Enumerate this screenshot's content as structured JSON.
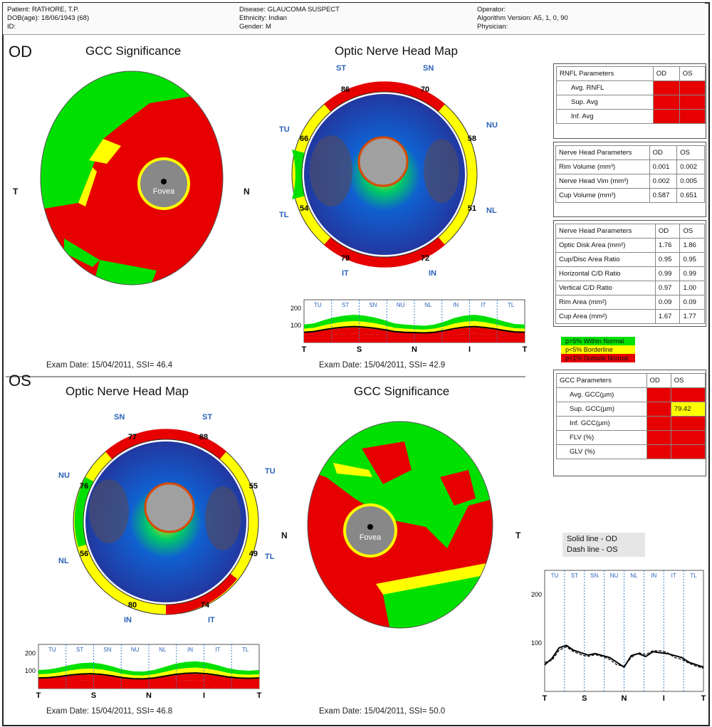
{
  "header": {
    "patient": "Patient: RATHORE, T.P.",
    "dob": "DOB(age): 18/06/1943 (68)",
    "id": "ID:",
    "disease": "Disease: GLAUCOMA SUSPECT",
    "ethnicity": "Ethnicity: Indian",
    "gender": "Gender: M",
    "operator": "Operator:",
    "algorithm": "Algorithm Version: A5, 1, 0, 90",
    "physician": "Physician:"
  },
  "od": {
    "section": "OD",
    "gcc_title": "GCC Significance",
    "onh_title": "Optic Nerve Head Map",
    "gcc_left": "T",
    "gcc_right": "N",
    "fovea": "Fovea",
    "onh_quadrants": {
      "st": "ST",
      "sn": "SN",
      "nu": "NU",
      "nl": "NL",
      "in": "IN",
      "it": "IT",
      "tl": "TL",
      "tu": "TU"
    },
    "onh_values": {
      "st": "86",
      "sn": "70",
      "nu": "58",
      "nl": "51",
      "in": "72",
      "it": "79",
      "tl": "54",
      "tu": "66"
    },
    "gcc_exam": "Exam Date: 15/04/2011, SSI= 46.4",
    "onh_exam": "Exam Date: 15/04/2011, SSI= 42.9"
  },
  "os": {
    "section": "OS",
    "onh_title": "Optic Nerve Head Map",
    "gcc_title": "GCC Significance",
    "onh_quadrants": {
      "sn": "SN",
      "st": "ST",
      "tu": "TU",
      "tl": "TL",
      "it": "IT",
      "in": "IN",
      "nl": "NL",
      "nu": "NU"
    },
    "onh_values": {
      "sn": "77",
      "st": "88",
      "tu": "55",
      "tl": "49",
      "it": "74",
      "in": "80",
      "nl": "56",
      "nu": "76"
    },
    "onh_right": "N",
    "gcc_right": "T",
    "fovea": "Fovea",
    "onh_exam": "Exam Date: 15/04/2011, SSI= 46.8",
    "gcc_exam": "Exam Date: 15/04/2011, SSI= 50.0"
  },
  "rnfl_table": {
    "headers": [
      "RNFL Parameters",
      "OD",
      "OS"
    ],
    "rows": [
      {
        "label": "Avg. RNFL",
        "od": "",
        "os": ""
      },
      {
        "label": "Sup. Avg",
        "od": "",
        "os": ""
      },
      {
        "label": "Inf. Avg",
        "od": "",
        "os": ""
      }
    ]
  },
  "nerve_volume_table": {
    "headers": [
      "Nerve Head Parameters",
      "OD",
      "OS"
    ],
    "rows": [
      {
        "label": "Rim Volume (mm³)",
        "od": "0.001",
        "os": "0.002"
      },
      {
        "label": "Nerve Head Vim (mm³)",
        "od": "0.002",
        "os": "0.005"
      },
      {
        "label": "Cup Volume (mm³)",
        "od": "0.587",
        "os": "0.651"
      }
    ]
  },
  "nerve_area_table": {
    "headers": [
      "Nerve Head Parameters",
      "OD",
      "OS"
    ],
    "rows": [
      {
        "label": "Optic Disk Area (mm²)",
        "od": "1.76",
        "os": "1.86"
      },
      {
        "label": "Cup/Disc Area Ratio",
        "od": "0.95",
        "os": "0.95"
      },
      {
        "label": "Horizontal C/D Ratio",
        "od": "0.99",
        "os": "0.99"
      },
      {
        "label": "Vertical C/D Ratio",
        "od": "0.97",
        "os": "1.00"
      },
      {
        "label": "Rim Area (mm²)",
        "od": "0.09",
        "os": "0.09"
      },
      {
        "label": "Cup Area (mm²)",
        "od": "1.67",
        "os": "1.77"
      }
    ]
  },
  "legend": {
    "normal": "p>5% Within Normal",
    "borderline": "p<5% Borderline",
    "outside": "p<1% Outside Normal"
  },
  "gcc_table": {
    "headers": [
      "GCC Parameters",
      "OD",
      "OS"
    ],
    "rows": [
      {
        "label": "Avg. GCC(µm)",
        "od": "",
        "os": ""
      },
      {
        "label": "Sup. GCC(µm)",
        "od": "",
        "os": "79.42"
      },
      {
        "label": "Inf. GCC(µm)",
        "od": "",
        "os": ""
      },
      {
        "label": "FLV (%)",
        "od": "",
        "os": ""
      },
      {
        "label": "GLV (%)",
        "od": "",
        "os": ""
      }
    ]
  },
  "line_key": {
    "solid": "Solid line - OD",
    "dash": "Dash line - OS"
  },
  "tsnit": {
    "sectors": [
      "TU",
      "ST",
      "SN",
      "NU",
      "NL",
      "IN",
      "IT",
      "TL"
    ],
    "x_ticks": [
      "T",
      "S",
      "N",
      "I",
      "T"
    ],
    "y_ticks": [
      "200",
      "100",
      "0"
    ]
  },
  "chart_data": [
    {
      "type": "line",
      "id": "od-tsnit",
      "sectors": [
        "TU",
        "ST",
        "SN",
        "NU",
        "NL",
        "IN",
        "IT",
        "TL"
      ],
      "x_ticks": [
        "T",
        "S",
        "N",
        "I",
        "T"
      ],
      "ylim": [
        0,
        250
      ],
      "series": [
        {
          "values": [
            60,
            64,
            75,
            84,
            90,
            93,
            90,
            84,
            75,
            64,
            60,
            58,
            56,
            60,
            70,
            82,
            90,
            93,
            88,
            80,
            70,
            62,
            60
          ]
        }
      ]
    },
    {
      "type": "line",
      "id": "os-tsnit",
      "sectors": [
        "TU",
        "ST",
        "SN",
        "NU",
        "NL",
        "IN",
        "IT",
        "TL"
      ],
      "x_ticks": [
        "T",
        "S",
        "N",
        "I",
        "T"
      ],
      "ylim": [
        0,
        250
      ],
      "series": [
        {
          "values": [
            60,
            62,
            68,
            76,
            82,
            84,
            80,
            72,
            62,
            56,
            55,
            60,
            70,
            80,
            86,
            88,
            84,
            76,
            66,
            60,
            58,
            60
          ]
        }
      ]
    },
    {
      "type": "line",
      "id": "compare-tsnit",
      "sectors": [
        "TU",
        "ST",
        "SN",
        "NU",
        "NL",
        "IN",
        "IT",
        "TL"
      ],
      "x_ticks": [
        "T",
        "S",
        "N",
        "I",
        "T"
      ],
      "ylim": [
        0,
        250
      ],
      "series": [
        {
          "values": [
            55,
            68,
            90,
            95,
            85,
            80,
            75,
            78,
            74,
            70,
            60,
            50,
            74,
            78,
            72,
            82,
            80,
            78,
            74,
            70,
            60,
            55,
            50
          ]
        },
        {
          "values": [
            60,
            64,
            85,
            92,
            82,
            76,
            72,
            76,
            72,
            66,
            55,
            52,
            70,
            80,
            76,
            84,
            84,
            80,
            70,
            66,
            58,
            52,
            48
          ]
        }
      ]
    }
  ]
}
